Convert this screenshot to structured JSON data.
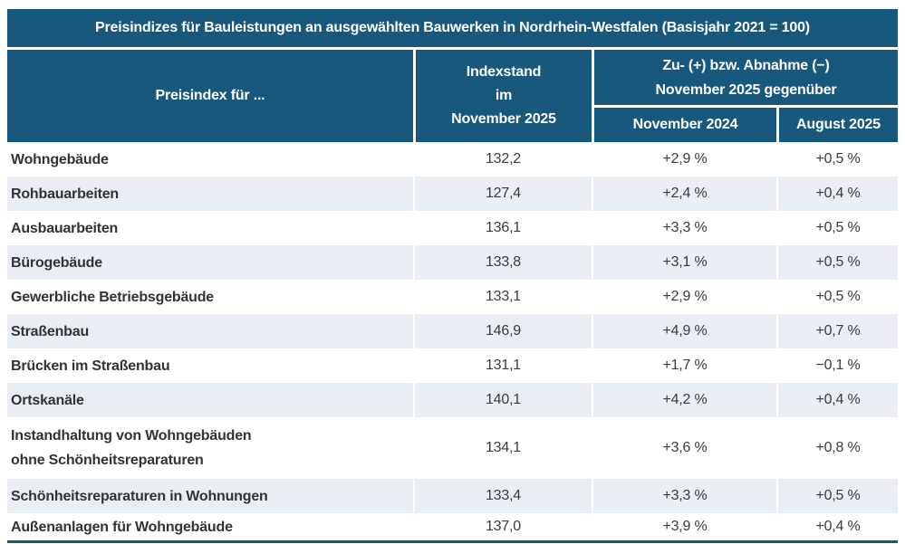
{
  "colors": {
    "header_blue": "#18587d",
    "alt_row": "#e9eef5",
    "body_text": "#3b3b3b",
    "header_text": "#ffffff"
  },
  "title": "Preisindizes für Bauleistungen an ausgewählten Bauwerken in Nordrhein-Westfalen (Basisjahr 2021 = 100)",
  "header": {
    "col_label": "Preisindex für ...",
    "col_index_line1": "Indexstand",
    "col_index_line2": "im",
    "col_index_line3": "November 2025",
    "col_change_line1": "Zu- (+) bzw. Abnahme (−)",
    "col_change_line2": "November 2025 gegenüber",
    "sub_col_nov": "November 2024",
    "sub_col_aug": "August 2025"
  },
  "rows": [
    {
      "label": "Wohngebäude",
      "index": "132,2",
      "nov": "+2,9 %",
      "aug": "+0,5 %"
    },
    {
      "label": "Rohbauarbeiten",
      "index": "127,4",
      "nov": "+2,4 %",
      "aug": "+0,4 %"
    },
    {
      "label": "Ausbauarbeiten",
      "index": "136,1",
      "nov": "+3,3 %",
      "aug": "+0,5 %"
    },
    {
      "label": "Bürogebäude",
      "index": "133,8",
      "nov": "+3,1 %",
      "aug": "+0,5 %"
    },
    {
      "label": "Gewerbliche Betriebsgebäude",
      "index": "133,1",
      "nov": "+2,9 %",
      "aug": "+0,5 %"
    },
    {
      "label": "Straßenbau",
      "index": "146,9",
      "nov": "+4,9 %",
      "aug": "+0,7 %"
    },
    {
      "label": "Brücken im Straßenbau",
      "index": "131,1",
      "nov": "+1,7 %",
      "aug": "−0,1 %"
    },
    {
      "label": "Ortskanäle",
      "index": "140,1",
      "nov": "+4,2 %",
      "aug": "+0,4 %"
    },
    {
      "label": "Instandhaltung von Wohngebäuden",
      "label_line2": "ohne Schönheitsreparaturen",
      "index": "134,1",
      "nov": "+3,6 %",
      "aug": "+0,8 %"
    },
    {
      "label": "Schönheitsreparaturen in Wohnungen",
      "index": "133,4",
      "nov": "+3,3 %",
      "aug": "+0,5 %"
    },
    {
      "label": "Außenanlagen für Wohngebäude",
      "index": "137,0",
      "nov": "+3,9 %",
      "aug": "+0,4 %"
    }
  ],
  "chart_data": {
    "type": "table",
    "title": "Preisindizes für Bauleistungen an ausgewählten Bauwerken in Nordrhein-Westfalen (Basisjahr 2021 = 100)",
    "base_year": "2021 = 100",
    "columns": [
      "Preisindex für ...",
      "Indexstand im November 2025",
      "Zu- (+) bzw. Abnahme (−) November 2025 gegenüber November 2024",
      "Zu- (+) bzw. Abnahme (−) November 2025 gegenüber August 2025"
    ],
    "rows": [
      [
        "Wohngebäude",
        132.2,
        2.9,
        0.5
      ],
      [
        "Rohbauarbeiten",
        127.4,
        2.4,
        0.4
      ],
      [
        "Ausbauarbeiten",
        136.1,
        3.3,
        0.5
      ],
      [
        "Bürogebäude",
        133.8,
        3.1,
        0.5
      ],
      [
        "Gewerbliche Betriebsgebäude",
        133.1,
        2.9,
        0.5
      ],
      [
        "Straßenbau",
        146.9,
        4.9,
        0.7
      ],
      [
        "Brücken im Straßenbau",
        131.1,
        1.7,
        -0.1
      ],
      [
        "Ortskanäle",
        140.1,
        4.2,
        0.4
      ],
      [
        "Instandhaltung von Wohngebäuden ohne Schönheitsreparaturen",
        134.1,
        3.6,
        0.8
      ],
      [
        "Schönheitsreparaturen in Wohnungen",
        133.4,
        3.3,
        0.5
      ],
      [
        "Außenanlagen für Wohngebäude",
        137.0,
        3.9,
        0.4
      ]
    ],
    "units": {
      "index": "Index (2021 = 100)",
      "changes": "percent"
    }
  }
}
